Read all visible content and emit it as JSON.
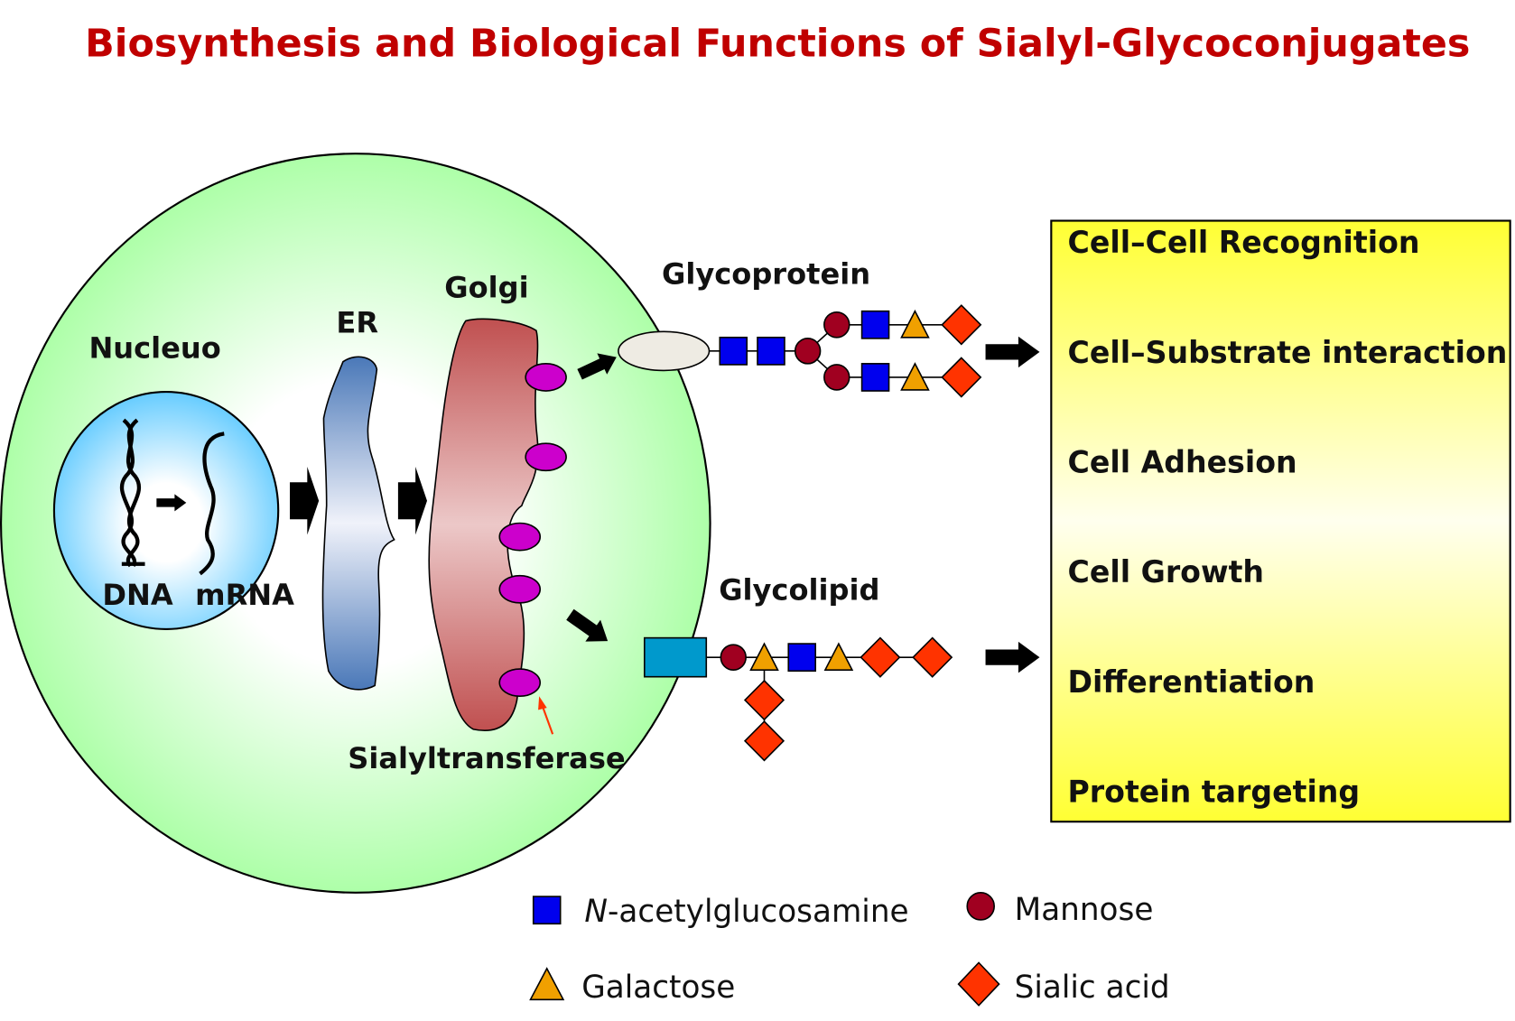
{
  "title": "Biosynthesis and Biological Functions of Sialyl-Glycoconjugates",
  "cell": {
    "nucleus_label": "Nucleuo",
    "dna_label": "DNA",
    "mrna_label": "mRNA",
    "er_label": "ER",
    "golgi_label": "Golgi",
    "enzyme_label": "Sialyltransferase"
  },
  "products": {
    "glycoprotein_label": "Glycoprotein",
    "glycolipid_label": "Glycolipid"
  },
  "functions": [
    "Cell–Cell Recognition",
    "Cell–Substrate interaction",
    "Cell Adhesion",
    "Cell Growth",
    "Differentiation",
    "Protein targeting"
  ],
  "legend": {
    "glcnac_prefix": "N",
    "glcnac_rest": "-acetylglucosamine",
    "mannose": "Mannose",
    "galactose": "Galactose",
    "sialic_acid": "Sialic acid"
  },
  "colors": {
    "title": "#c00000",
    "glcnac": "#0000ee",
    "mannose": "#a00020",
    "galactose": "#f0a000",
    "sialic_acid": "#ff3300",
    "enzyme": "#cc00cc",
    "cell": "#a0ff9a",
    "function_box": "#ffff33",
    "lipid_anchor": "#0099cc"
  }
}
